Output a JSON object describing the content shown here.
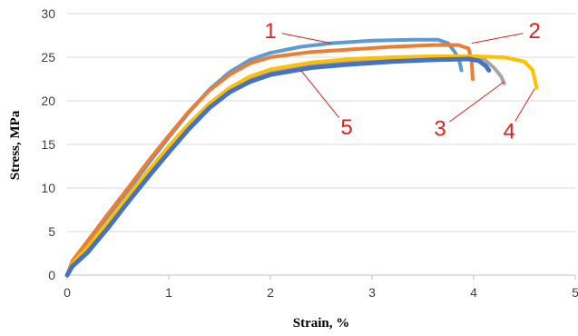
{
  "chart_data": {
    "type": "line",
    "title": "",
    "xlabel": "Strain, %",
    "ylabel": "Stress, MPa",
    "xlim": [
      0,
      5
    ],
    "ylim": [
      0,
      30
    ],
    "x_ticks": [
      "0",
      "1",
      "2",
      "3",
      "4",
      "5"
    ],
    "y_ticks": [
      "0",
      "5",
      "10",
      "15",
      "20",
      "25",
      "30"
    ],
    "grid": "horizontal",
    "legend": "none",
    "series": [
      {
        "color": "#5b9bd5",
        "points": [
          [
            0,
            0
          ],
          [
            0.05,
            1.5
          ],
          [
            0.2,
            3.6
          ],
          [
            0.4,
            6.6
          ],
          [
            0.6,
            9.7
          ],
          [
            0.8,
            12.8
          ],
          [
            1.0,
            15.8
          ],
          [
            1.2,
            18.7
          ],
          [
            1.4,
            21.3
          ],
          [
            1.6,
            23.3
          ],
          [
            1.8,
            24.7
          ],
          [
            2.0,
            25.5
          ],
          [
            2.3,
            26.2
          ],
          [
            2.6,
            26.6
          ],
          [
            3.0,
            26.9
          ],
          [
            3.4,
            27.0
          ],
          [
            3.65,
            27.0
          ],
          [
            3.75,
            26.6
          ],
          [
            3.82,
            25.5
          ],
          [
            3.86,
            24.5
          ],
          [
            3.88,
            23.5
          ]
        ]
      },
      {
        "color": "#ed7d31",
        "points": [
          [
            0,
            0
          ],
          [
            0.05,
            1.6
          ],
          [
            0.2,
            3.9
          ],
          [
            0.4,
            7.0
          ],
          [
            0.6,
            10.0
          ],
          [
            0.8,
            13.1
          ],
          [
            1.0,
            16.0
          ],
          [
            1.2,
            18.8
          ],
          [
            1.4,
            21.2
          ],
          [
            1.6,
            23.0
          ],
          [
            1.8,
            24.3
          ],
          [
            2.0,
            25.0
          ],
          [
            2.4,
            25.6
          ],
          [
            2.8,
            25.9
          ],
          [
            3.2,
            26.2
          ],
          [
            3.6,
            26.4
          ],
          [
            3.85,
            26.4
          ],
          [
            3.95,
            26.0
          ],
          [
            3.98,
            24.5
          ],
          [
            3.99,
            22.5
          ]
        ]
      },
      {
        "color": "#a5a5a5",
        "points": [
          [
            0,
            0
          ],
          [
            0.05,
            1.2
          ],
          [
            0.2,
            3.0
          ],
          [
            0.4,
            5.9
          ],
          [
            0.6,
            8.9
          ],
          [
            0.8,
            11.8
          ],
          [
            1.0,
            14.6
          ],
          [
            1.2,
            17.3
          ],
          [
            1.4,
            19.6
          ],
          [
            1.6,
            21.4
          ],
          [
            1.8,
            22.6
          ],
          [
            2.0,
            23.4
          ],
          [
            2.4,
            24.2
          ],
          [
            2.8,
            24.6
          ],
          [
            3.2,
            24.8
          ],
          [
            3.6,
            25.0
          ],
          [
            3.9,
            25.0
          ],
          [
            4.1,
            24.8
          ],
          [
            4.2,
            23.8
          ],
          [
            4.27,
            22.8
          ],
          [
            4.3,
            22.0
          ]
        ]
      },
      {
        "color": "#ffc000",
        "points": [
          [
            0,
            0
          ],
          [
            0.05,
            1.3
          ],
          [
            0.2,
            3.2
          ],
          [
            0.4,
            6.1
          ],
          [
            0.6,
            9.1
          ],
          [
            0.8,
            12.0
          ],
          [
            1.0,
            14.8
          ],
          [
            1.2,
            17.4
          ],
          [
            1.4,
            19.7
          ],
          [
            1.6,
            21.5
          ],
          [
            1.8,
            22.8
          ],
          [
            2.0,
            23.6
          ],
          [
            2.4,
            24.4
          ],
          [
            2.8,
            24.8
          ],
          [
            3.2,
            25.0
          ],
          [
            3.6,
            25.1
          ],
          [
            4.0,
            25.1
          ],
          [
            4.3,
            25.0
          ],
          [
            4.5,
            24.5
          ],
          [
            4.58,
            23.5
          ],
          [
            4.6,
            22.5
          ],
          [
            4.62,
            21.5
          ]
        ]
      },
      {
        "color": "#4472c4",
        "points": [
          [
            0,
            0
          ],
          [
            0.05,
            1.0
          ],
          [
            0.2,
            2.6
          ],
          [
            0.4,
            5.4
          ],
          [
            0.6,
            8.4
          ],
          [
            0.8,
            11.3
          ],
          [
            1.0,
            14.1
          ],
          [
            1.2,
            16.8
          ],
          [
            1.4,
            19.2
          ],
          [
            1.6,
            21.0
          ],
          [
            1.8,
            22.2
          ],
          [
            2.0,
            23.0
          ],
          [
            2.4,
            23.8
          ],
          [
            2.8,
            24.2
          ],
          [
            3.2,
            24.5
          ],
          [
            3.6,
            24.7
          ],
          [
            3.95,
            24.8
          ],
          [
            4.05,
            24.6
          ],
          [
            4.12,
            24.0
          ],
          [
            4.15,
            23.5
          ]
        ]
      }
    ],
    "annotations": [
      {
        "text": "1",
        "label_xy": [
          2.0,
          28.0
        ],
        "target_xy": [
          2.6,
          26.6
        ]
      },
      {
        "text": "2",
        "label_xy": [
          4.6,
          28.0
        ],
        "target_xy": [
          3.98,
          26.6
        ]
      },
      {
        "text": "5",
        "label_xy": [
          2.75,
          17.0
        ],
        "target_xy": [
          2.3,
          23.5
        ]
      },
      {
        "text": "3",
        "label_xy": [
          3.67,
          16.8
        ],
        "target_xy": [
          4.3,
          22.2
        ]
      },
      {
        "text": "4",
        "label_xy": [
          4.35,
          16.5
        ],
        "target_xy": [
          4.6,
          21.4
        ]
      }
    ]
  }
}
